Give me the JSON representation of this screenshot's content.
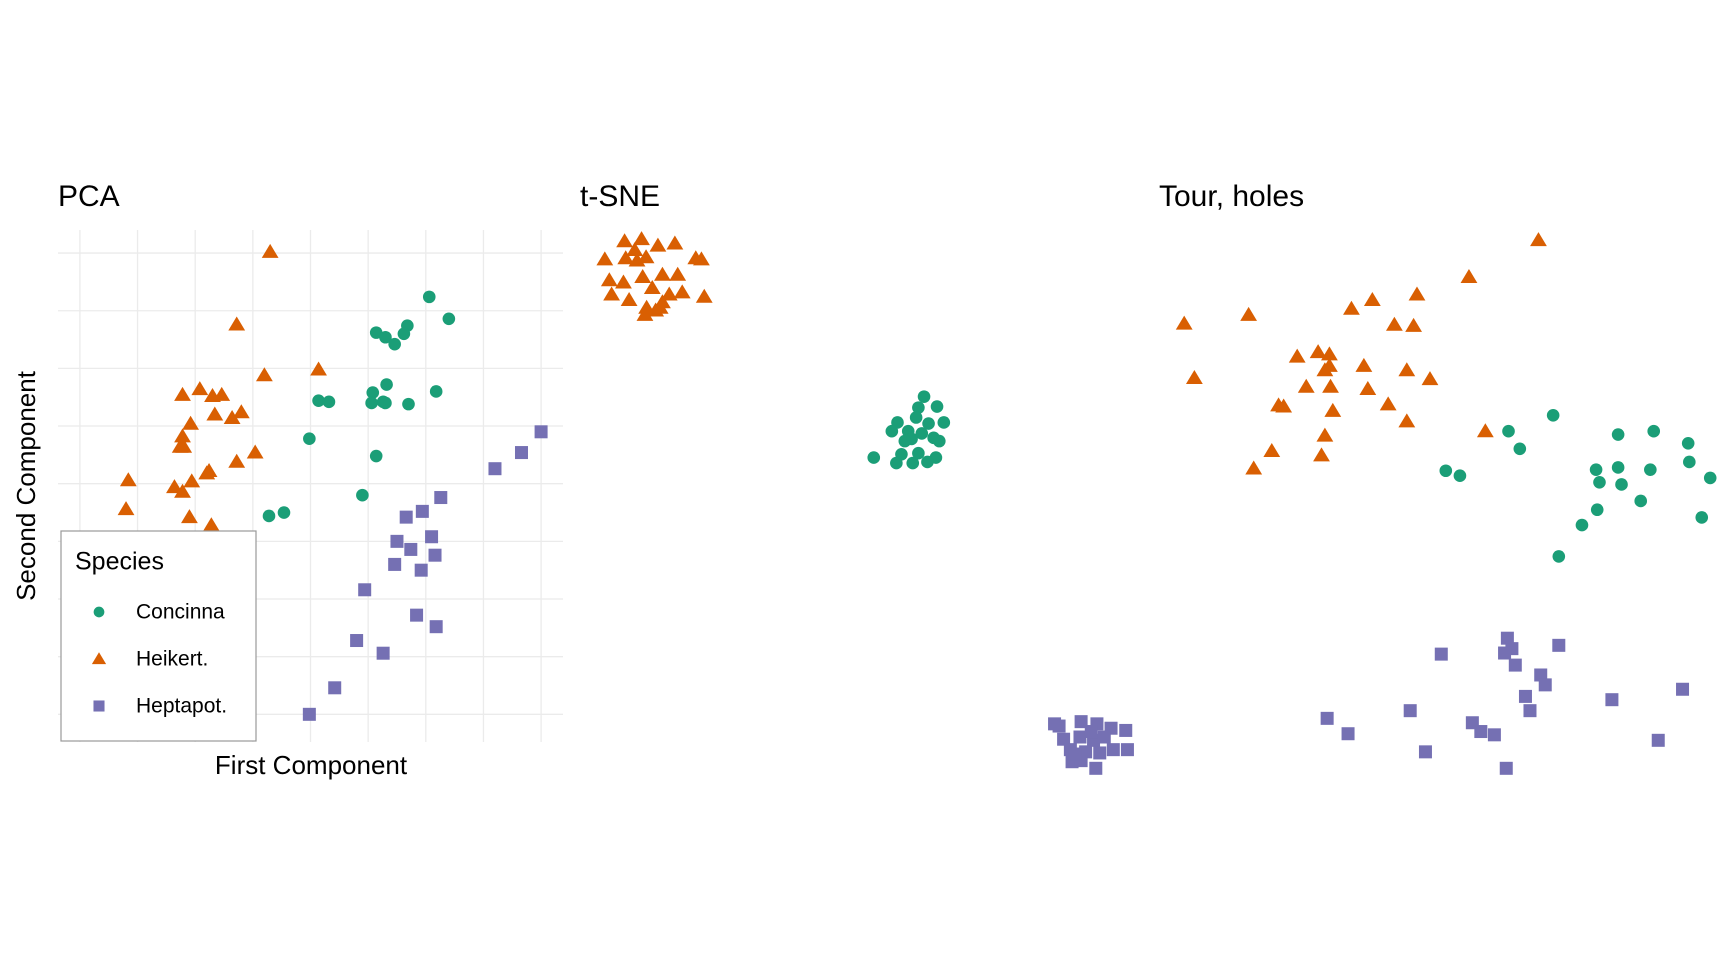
{
  "chart_data": [
    {
      "type": "scatter",
      "title": "PCA",
      "x_label": "First Component",
      "y_label": "Second Component",
      "legend_title": "Species",
      "legend": "bottom-left",
      "grid": true,
      "xlim": [
        -0.19,
        4.19
      ],
      "ylim": [
        -0.24,
        4.2
      ],
      "xticks": [
        0,
        0.5,
        1,
        1.5,
        2,
        2.5,
        3,
        3.5,
        4
      ],
      "yticks": [
        0,
        0.5,
        1,
        1.5,
        2,
        2.5,
        3,
        3.5,
        4
      ],
      "series": [
        {
          "name": "Concinna",
          "color": "#1b9e77",
          "marker": "circle",
          "x": [
            3.03,
            3.2,
            2.57,
            2.65,
            2.73,
            2.84,
            2.81,
            2.66,
            2.54,
            2.63,
            2.53,
            2.65,
            2.85,
            3.09,
            2.07,
            2.16,
            1.99,
            2.57,
            2.45,
            1.64,
            1.77
          ],
          "y": [
            3.62,
            3.43,
            3.31,
            3.27,
            3.21,
            3.37,
            3.3,
            2.86,
            2.79,
            2.71,
            2.7,
            2.7,
            2.69,
            2.8,
            2.72,
            2.71,
            2.39,
            2.24,
            1.9,
            1.72,
            1.75
          ]
        },
        {
          "name": "Heikert.",
          "color": "#d95f02",
          "marker": "triangle",
          "x": [
            1.65,
            1.36,
            1.6,
            2.07,
            0.89,
            1.04,
            1.15,
            1.23,
            1.4,
            1.32,
            1.17,
            0.96,
            0.89,
            0.87,
            0.9,
            1.52,
            1.36,
            1.12,
            1.1,
            0.42,
            0.97,
            0.82,
            0.89,
            0.4,
            0.95,
            1.14
          ],
          "y": [
            4.01,
            3.38,
            2.94,
            2.99,
            2.77,
            2.82,
            2.76,
            2.77,
            2.62,
            2.57,
            2.6,
            2.52,
            2.41,
            2.32,
            2.32,
            2.27,
            2.19,
            2.11,
            2.09,
            2.03,
            2.02,
            1.97,
            1.93,
            1.78,
            1.71,
            1.64
          ]
        },
        {
          "name": "Heptapot.",
          "color": "#7570b3",
          "marker": "square",
          "x": [
            4.0,
            3.83,
            3.6,
            3.13,
            2.97,
            2.83,
            3.05,
            2.75,
            2.87,
            3.08,
            2.73,
            2.96,
            2.47,
            2.92,
            3.09,
            2.4,
            2.63,
            2.21,
            1.99
          ],
          "y": [
            2.45,
            2.27,
            2.13,
            1.88,
            1.76,
            1.71,
            1.54,
            1.5,
            1.43,
            1.38,
            1.3,
            1.25,
            1.08,
            0.86,
            0.76,
            0.64,
            0.53,
            0.23,
            0.0
          ]
        }
      ]
    },
    {
      "type": "scatter",
      "title": "t-SNE",
      "xlim": [
        0,
        100
      ],
      "ylim": [
        0,
        100
      ],
      "series": [
        {
          "color": "#1b9e77",
          "marker": "circle",
          "x": [
            61.6,
            60.6,
            63.9,
            56.9,
            60.2,
            62.4,
            65.1,
            58.8,
            61.2,
            63.3,
            55.9,
            59.4,
            64.3,
            57.6,
            60.6,
            63.7,
            52.7,
            56.7,
            59.6,
            62.2,
            58.2
          ],
          "y": [
            69.1,
            67.1,
            67.3,
            64.4,
            65.3,
            64.2,
            64.4,
            62.8,
            62.4,
            61.6,
            62.8,
            61.4,
            61.0,
            58.6,
            58.8,
            58.0,
            58.0,
            57.0,
            57.0,
            57.2,
            61.0
          ]
        },
        {
          "color": "#d95f02",
          "marker": "triangle",
          "x": [
            5.1,
            8.6,
            11.6,
            14.5,
            17.5,
            21.2,
            22.2,
            8.8,
            10.8,
            12.4,
            15.3,
            18.0,
            5.9,
            8.4,
            11.8,
            13.5,
            16.5,
            18.8,
            22.7,
            6.3,
            9.4,
            12.5,
            14.1,
            15.3,
            12.2,
            14.9,
            10.4
          ],
          "y": [
            94.1,
            97.4,
            97.8,
            96.6,
            97.0,
            94.3,
            94.1,
            94.3,
            93.9,
            94.5,
            91.3,
            91.3,
            90.3,
            89.9,
            90.9,
            88.9,
            87.7,
            88.1,
            87.3,
            87.7,
            86.7,
            85.3,
            84.8,
            86.3,
            84.0,
            85.3,
            95.8
          ]
        },
        {
          "color": "#7570b3",
          "marker": "square",
          "x": [
            84.7,
            89.4,
            92.2,
            94.7,
            97.3,
            86.3,
            89.2,
            91.6,
            93.5,
            97.6,
            87.5,
            90.2,
            92.7,
            95.1,
            87.8,
            89.4,
            92.0,
            88.4,
            85.5,
            91.2
          ],
          "y": [
            9.5,
            9.9,
            9.5,
            8.7,
            8.3,
            6.7,
            7.1,
            6.5,
            7.1,
            4.8,
            4.8,
            4.4,
            4.2,
            4.8,
            2.6,
            2.8,
            1.4,
            4.0,
            9.1,
            8.1
          ]
        }
      ]
    },
    {
      "type": "scatter",
      "title": "Tour, holes",
      "xlim": [
        0,
        100
      ],
      "ylim": [
        0,
        100
      ],
      "series": [
        {
          "color": "#1b9e77",
          "marker": "circle",
          "x": [
            63.1,
            71.0,
            65.1,
            52.0,
            54.5,
            82.5,
            88.8,
            94.9,
            78.6,
            82.5,
            88.2,
            95.1,
            79.2,
            83.1,
            98.8,
            86.5,
            78.8,
            76.1,
            97.3,
            72.0
          ],
          "y": [
            62.8,
            65.7,
            59.6,
            55.6,
            54.7,
            62.2,
            62.8,
            60.6,
            55.8,
            56.2,
            55.8,
            57.2,
            53.5,
            53.1,
            54.3,
            50.1,
            48.5,
            45.7,
            47.1,
            40.0
          ]
        },
        {
          "color": "#d95f02",
          "marker": "triangle",
          "x": [
            68.4,
            56.1,
            46.9,
            39.0,
            35.3,
            42.9,
            46.3,
            17.1,
            5.7,
            7.5,
            25.7,
            29.4,
            31.4,
            37.5,
            45.1,
            49.2,
            27.3,
            31.6,
            38.2,
            30.6,
            22.4,
            23.3,
            32.0,
            41.8,
            45.1,
            30.6,
            21.2,
            30.0,
            18.0,
            59.0,
            31.4
          ],
          "y": [
            97.6,
            90.9,
            87.7,
            86.7,
            85.1,
            82.2,
            82.0,
            84.0,
            82.4,
            72.5,
            76.4,
            77.2,
            76.8,
            74.7,
            73.9,
            72.3,
            70.9,
            70.9,
            70.5,
            73.9,
            67.5,
            67.3,
            66.5,
            67.7,
            64.6,
            62.0,
            59.2,
            58.4,
            56.0,
            62.8,
            74.7
          ]
        },
        {
          "color": "#7570b3",
          "marker": "square",
          "x": [
            62.9,
            63.7,
            62.4,
            72.0,
            51.2,
            64.3,
            68.8,
            69.6,
            66.1,
            81.4,
            93.9,
            66.9,
            45.7,
            31.0,
            56.7,
            58.2,
            60.6,
            34.7,
            89.6,
            48.4,
            62.7
          ],
          "y": [
            25.1,
            23.2,
            22.4,
            23.8,
            22.2,
            20.2,
            18.4,
            16.6,
            14.5,
            13.9,
            15.8,
            11.9,
            11.9,
            10.5,
            9.7,
            8.1,
            7.5,
            7.7,
            6.5,
            4.4,
            1.4
          ]
        }
      ]
    }
  ]
}
